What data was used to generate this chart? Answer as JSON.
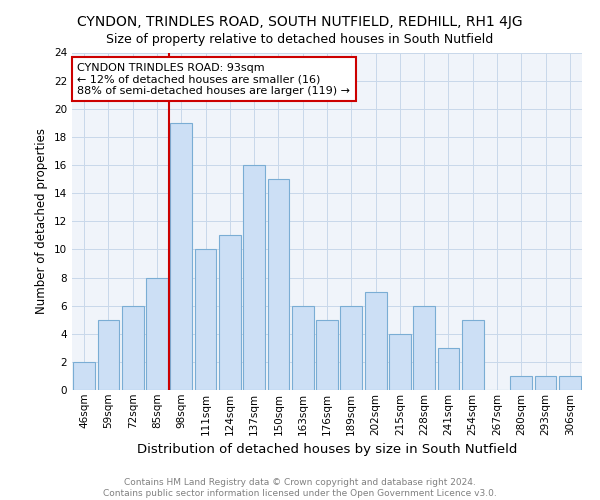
{
  "title": "CYNDON, TRINDLES ROAD, SOUTH NUTFIELD, REDHILL, RH1 4JG",
  "subtitle": "Size of property relative to detached houses in South Nutfield",
  "xlabel": "Distribution of detached houses by size in South Nutfield",
  "ylabel": "Number of detached properties",
  "categories": [
    "46sqm",
    "59sqm",
    "72sqm",
    "85sqm",
    "98sqm",
    "111sqm",
    "124sqm",
    "137sqm",
    "150sqm",
    "163sqm",
    "176sqm",
    "189sqm",
    "202sqm",
    "215sqm",
    "228sqm",
    "241sqm",
    "254sqm",
    "267sqm",
    "280sqm",
    "293sqm",
    "306sqm"
  ],
  "values": [
    2,
    5,
    6,
    8,
    19,
    10,
    11,
    16,
    15,
    6,
    5,
    6,
    7,
    4,
    6,
    3,
    5,
    0,
    1,
    1,
    1
  ],
  "bar_color": "#ccdff5",
  "bar_edge_color": "#7aadd4",
  "highlight_line_color": "#cc0000",
  "highlight_after_index": 3,
  "annotation_line1": "CYNDON TRINDLES ROAD: 93sqm",
  "annotation_line2": "← 12% of detached houses are smaller (16)",
  "annotation_line3": "88% of semi-detached houses are larger (119) →",
  "annotation_box_edge_color": "#cc0000",
  "ylim": [
    0,
    24
  ],
  "yticks": [
    0,
    2,
    4,
    6,
    8,
    10,
    12,
    14,
    16,
    18,
    20,
    22,
    24
  ],
  "footer": "Contains HM Land Registry data © Crown copyright and database right 2024.\nContains public sector information licensed under the Open Government Licence v3.0.",
  "bg_color": "#f0f4fa",
  "grid_color": "#c8d8ea",
  "title_fontsize": 10,
  "subtitle_fontsize": 9,
  "xlabel_fontsize": 9.5,
  "ylabel_fontsize": 8.5,
  "tick_fontsize": 7.5,
  "annotation_fontsize": 8,
  "footer_fontsize": 6.5,
  "footer_color": "#808080"
}
